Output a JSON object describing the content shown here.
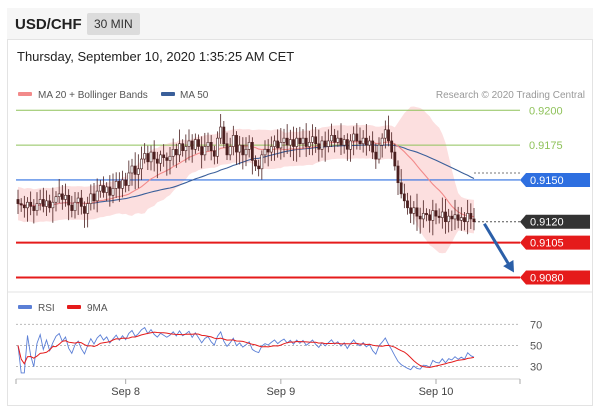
{
  "header": {
    "symbol": "USD/CHF",
    "timeframe": "30 MIN"
  },
  "datetime": "Thursday, September 10, 2020 1:35:25 AM CET",
  "research_credit": "Research © 2020 Trading Central",
  "colors": {
    "ma20": "#f28a8a",
    "ma50": "#3a5f9a",
    "band": "#fbd9d9",
    "resistance": "#8fc25a",
    "pivot": "#2e6fe0",
    "support": "#e51b1b",
    "candle": "#4a1f1f",
    "rsi": "#5b7fd6",
    "rsi_ma": "#e51b1b",
    "arrow": "#2b5fa8"
  },
  "chart_data": [
    {
      "type": "candlestick",
      "title": "USD/CHF 30 MIN",
      "legend": [
        {
          "name": "MA 20 + Bollinger Bands"
        },
        {
          "name": "MA 50"
        }
      ],
      "ylim": [
        0.9071,
        0.9216
      ],
      "x_ticks": [
        {
          "label": "Sep 8",
          "index": 34
        },
        {
          "label": "Sep 9",
          "index": 83
        },
        {
          "label": "Sep 10",
          "index": 132
        }
      ],
      "levels": [
        {
          "value": 0.92,
          "label": "0.9200",
          "type": "resistance"
        },
        {
          "value": 0.9175,
          "label": "0.9175",
          "type": "resistance"
        },
        {
          "value": 0.915,
          "label": "0.9150",
          "type": "pivot"
        },
        {
          "value": 0.912,
          "label": "0.9120",
          "type": "current"
        },
        {
          "value": 0.9105,
          "label": "0.9105",
          "type": "support"
        },
        {
          "value": 0.908,
          "label": "0.9080",
          "type": "support"
        }
      ],
      "close": [
        0.9133,
        0.9132,
        0.913,
        0.9134,
        0.9131,
        0.9128,
        0.9133,
        0.9136,
        0.9131,
        0.9135,
        0.913,
        0.9134,
        0.9138,
        0.914,
        0.9136,
        0.9139,
        0.9132,
        0.9128,
        0.9134,
        0.9137,
        0.9131,
        0.9126,
        0.9133,
        0.914,
        0.9135,
        0.9142,
        0.9146,
        0.9141,
        0.9145,
        0.9139,
        0.9144,
        0.9149,
        0.9144,
        0.915,
        0.9146,
        0.9155,
        0.916,
        0.9154,
        0.9158,
        0.9165,
        0.9169,
        0.9163,
        0.917,
        0.9165,
        0.9162,
        0.9168,
        0.9166,
        0.9164,
        0.9167,
        0.9172,
        0.9168,
        0.9176,
        0.9171,
        0.9174,
        0.9178,
        0.9172,
        0.9179,
        0.9174,
        0.9168,
        0.9174,
        0.9177,
        0.9171,
        0.9167,
        0.918,
        0.9188,
        0.9176,
        0.9168,
        0.9174,
        0.9182,
        0.917,
        0.9175,
        0.9168,
        0.9172,
        0.9177,
        0.9164,
        0.916,
        0.9158,
        0.9168,
        0.9172,
        0.917,
        0.9174,
        0.9178,
        0.9173,
        0.9177,
        0.918,
        0.9175,
        0.9179,
        0.9174,
        0.918,
        0.9176,
        0.918,
        0.9174,
        0.9177,
        0.9181,
        0.9176,
        0.9172,
        0.9178,
        0.9174,
        0.9178,
        0.9182,
        0.9177,
        0.918,
        0.9175,
        0.9179,
        0.9172,
        0.9178,
        0.9183,
        0.9178,
        0.9176,
        0.918,
        0.9175,
        0.9178,
        0.917,
        0.9165,
        0.9175,
        0.918,
        0.9186,
        0.9178,
        0.917,
        0.916,
        0.9148,
        0.914,
        0.9135,
        0.913,
        0.9126,
        0.913,
        0.9124,
        0.9122,
        0.9126,
        0.9125,
        0.9121,
        0.9128,
        0.9124,
        0.9123,
        0.9127,
        0.912,
        0.9124,
        0.9122,
        0.9125,
        0.9121,
        0.9123,
        0.912,
        0.9126,
        0.9122,
        0.912
      ],
      "projection": {
        "from_index": 146,
        "from_value": 0.912,
        "to_value": 0.908
      }
    },
    {
      "type": "line",
      "title": "RSI",
      "legend": [
        {
          "name": "RSI"
        },
        {
          "name": "9MA"
        }
      ],
      "ylim": [
        22,
        76
      ],
      "y_ticks": [
        {
          "value": 70,
          "label": "70"
        },
        {
          "value": 50,
          "label": "50"
        },
        {
          "value": 30,
          "label": "30"
        }
      ]
    }
  ]
}
